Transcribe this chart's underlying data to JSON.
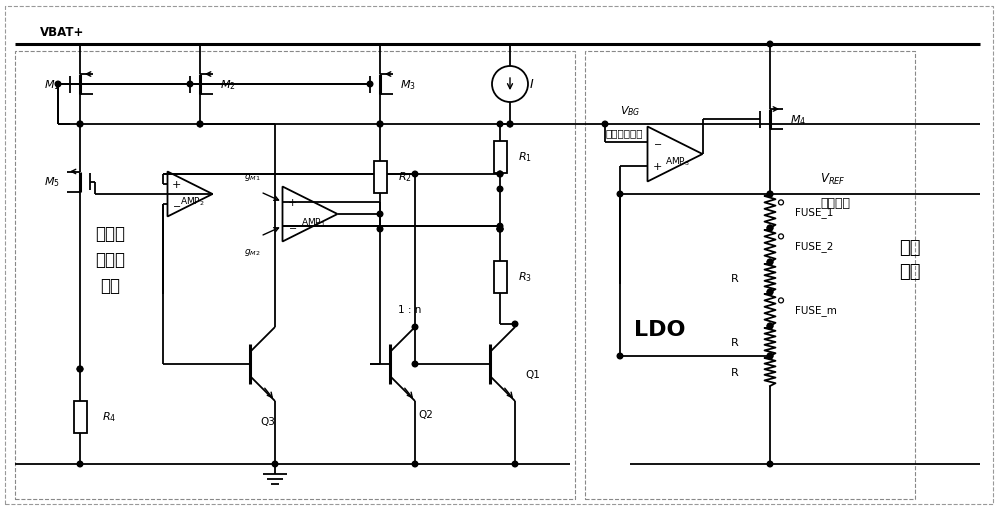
{
  "bg_color": "#ffffff",
  "line_color": "#000000",
  "figsize": [
    10.0,
    5.1
  ],
  "dpi": 100,
  "xlim": [
    0,
    100
  ],
  "ylim": [
    0,
    51
  ]
}
